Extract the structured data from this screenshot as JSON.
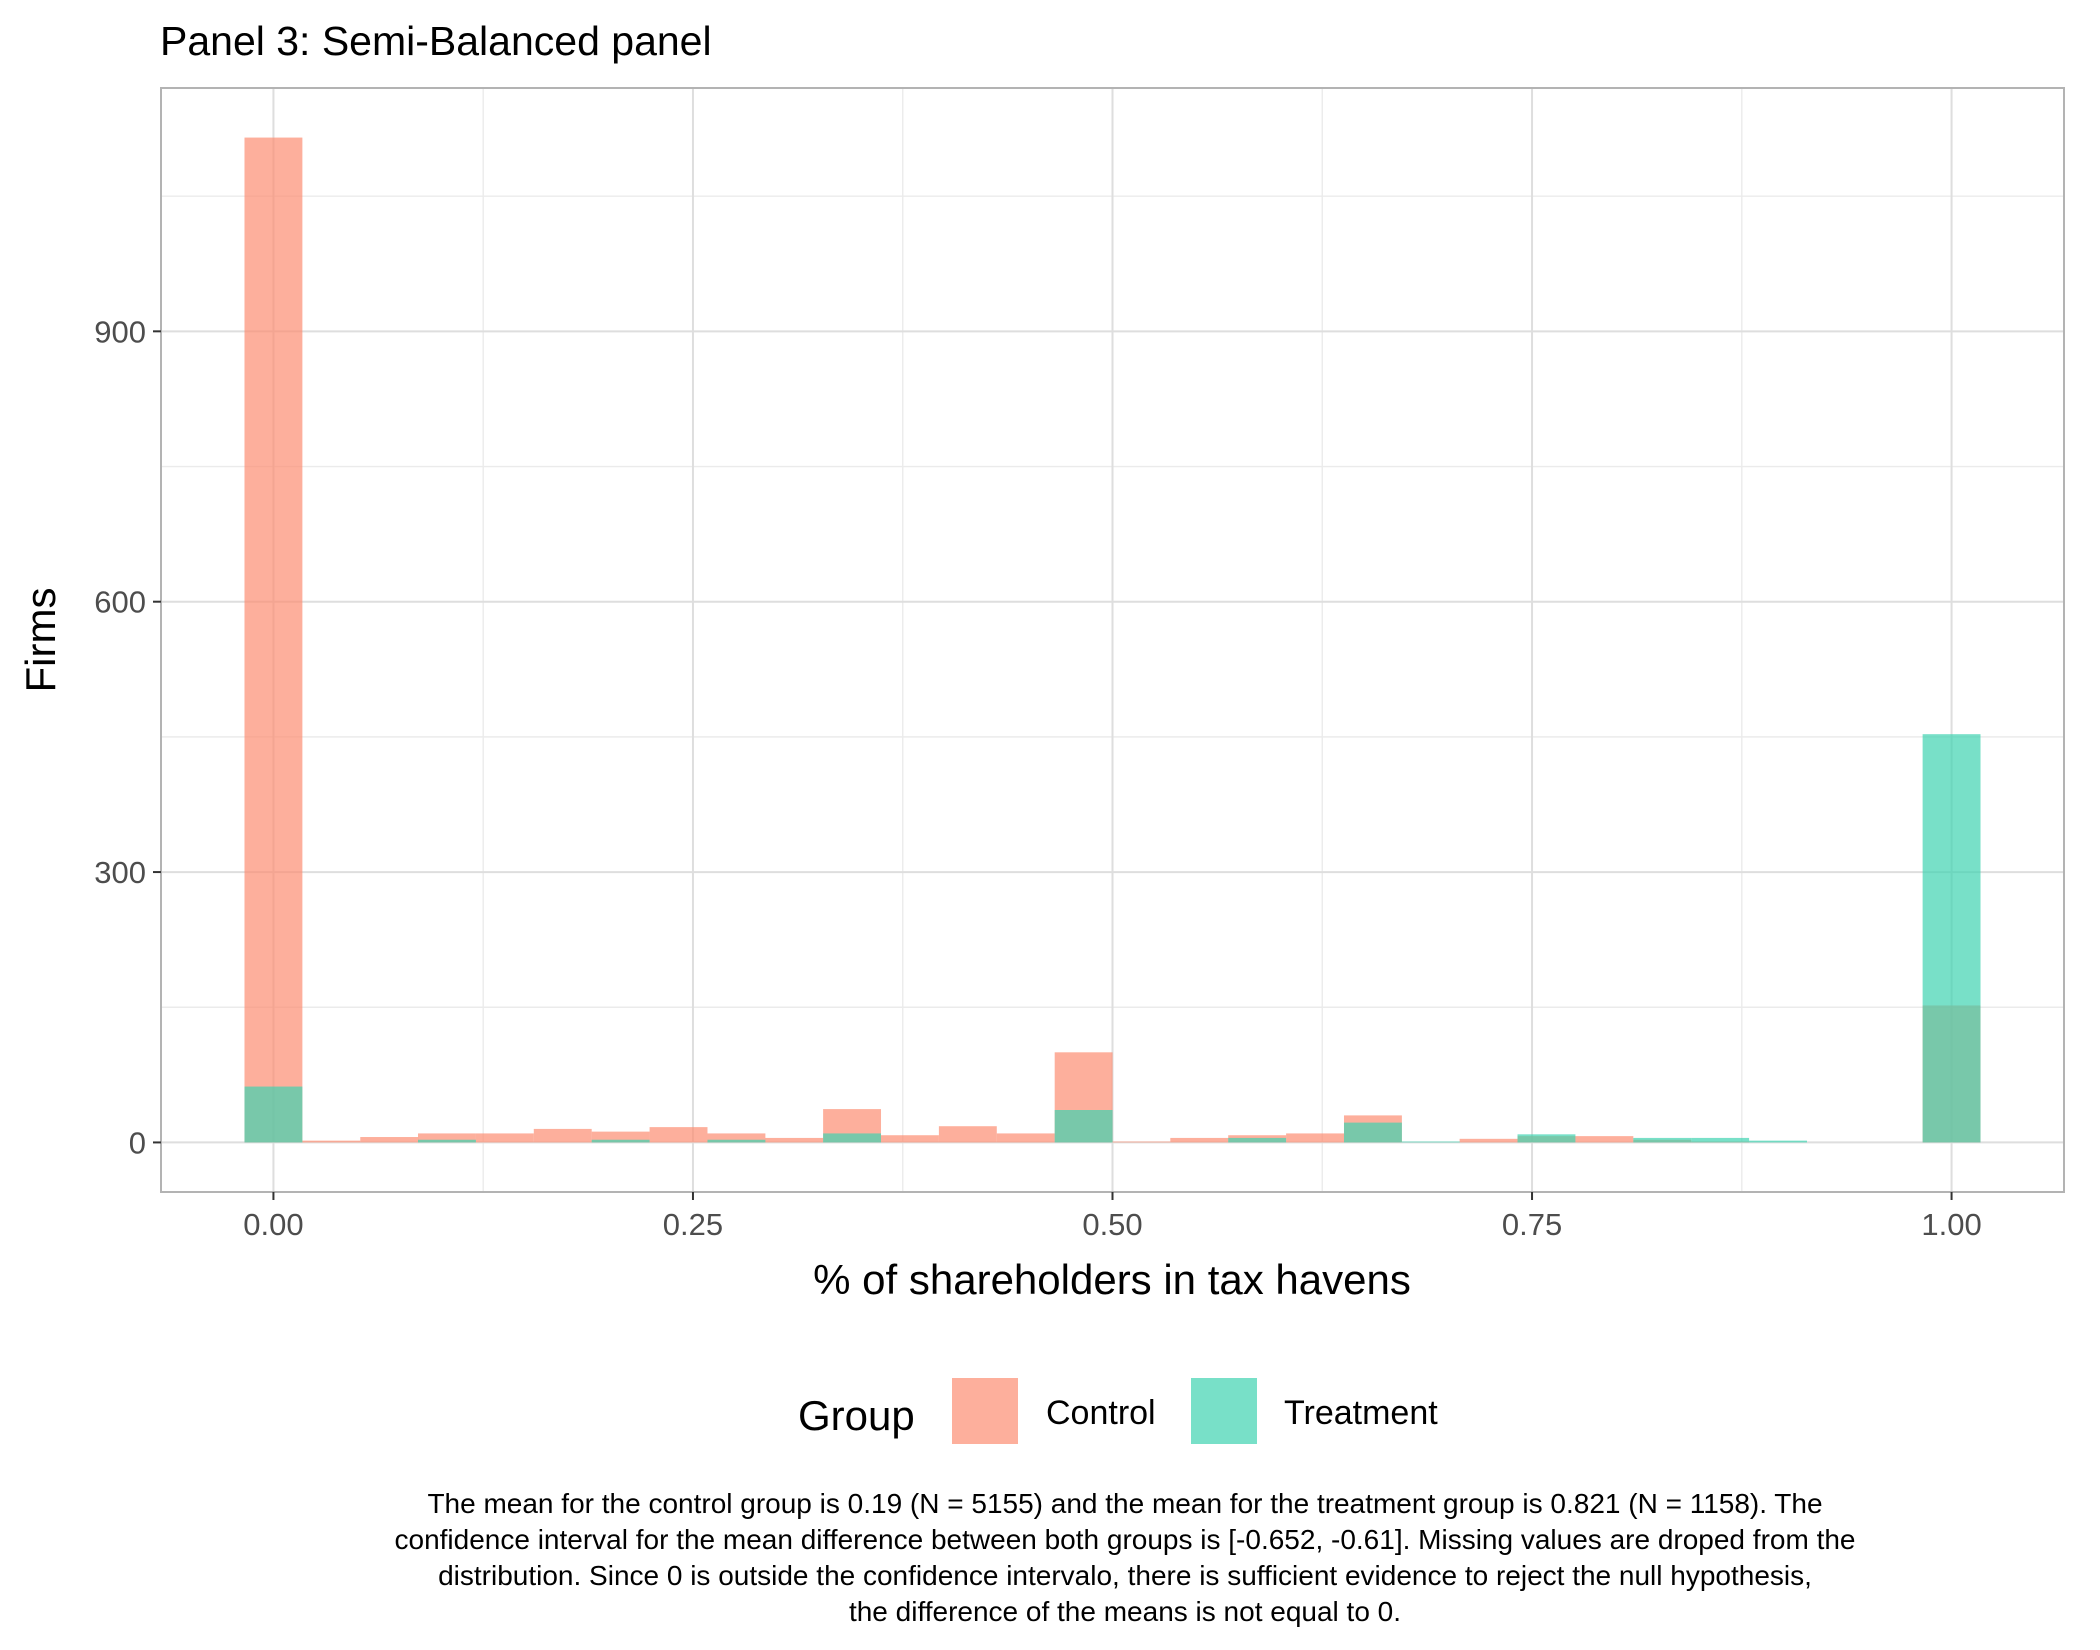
{
  "chart_data": {
    "type": "bar",
    "title": "Panel 3: Semi-Balanced panel",
    "xlabel": "% of shareholders in tax havens",
    "ylabel": "Firms",
    "xlim": [
      -0.067,
      1.067
    ],
    "ylim": [
      -55,
      1170
    ],
    "x_ticks": [
      {
        "value": 0.0,
        "label": "0.00"
      },
      {
        "value": 0.25,
        "label": "0.25"
      },
      {
        "value": 0.5,
        "label": "0.50"
      },
      {
        "value": 0.75,
        "label": "0.75"
      },
      {
        "value": 1.0,
        "label": "1.00"
      }
    ],
    "y_ticks": [
      {
        "value": 0,
        "label": "0"
      },
      {
        "value": 300,
        "label": "300"
      },
      {
        "value": 600,
        "label": "600"
      },
      {
        "value": 900,
        "label": "900"
      }
    ],
    "y_minor_ticks": [
      150,
      450,
      750,
      1050
    ],
    "x_minor_ticks": [
      0.125,
      0.375,
      0.625,
      0.875
    ],
    "grid": true,
    "legend": {
      "title": "Group",
      "placement": "bottom"
    },
    "bin_width": 0.0345,
    "bin_centers": [
      0.0,
      0.0345,
      0.069,
      0.1034,
      0.1379,
      0.1724,
      0.2069,
      0.2414,
      0.2759,
      0.3103,
      0.3448,
      0.3793,
      0.4138,
      0.4483,
      0.4828,
      0.5172,
      0.5517,
      0.5862,
      0.6207,
      0.6552,
      0.6897,
      0.7241,
      0.7586,
      0.7931,
      0.8276,
      0.8621,
      0.8966,
      0.931,
      0.9655,
      1.0
    ],
    "series": [
      {
        "name": "Control",
        "color": "#FC8D72",
        "values": [
          1115,
          2,
          6,
          10,
          10,
          15,
          12,
          17,
          10,
          5,
          37,
          8,
          18,
          10,
          100,
          1,
          5,
          8,
          10,
          30,
          0,
          4,
          7,
          7,
          3,
          1,
          0,
          0,
          0,
          152
        ]
      },
      {
        "name": "Treatment",
        "color": "#3FD3B0",
        "values": [
          62,
          0,
          0,
          3,
          0,
          0,
          3,
          0,
          3,
          0,
          10,
          0,
          0,
          0,
          36,
          0,
          0,
          5,
          0,
          22,
          1,
          0,
          9,
          0,
          5,
          5,
          2,
          0,
          0,
          453
        ]
      }
    ],
    "caption": [
      "The mean for the control group is 0.19 (N = 5155) and the mean for the treatment group is 0.821 (N = 1158). The",
      "confidence interval for the mean difference between both groups is [-0.652, -0.61]. Missing values are droped from the",
      "distribution. Since 0 is outside the confidence intervalo, there is sufficient evidence to reject the null hypothesis,",
      "the difference of the means is not equal to 0."
    ]
  }
}
